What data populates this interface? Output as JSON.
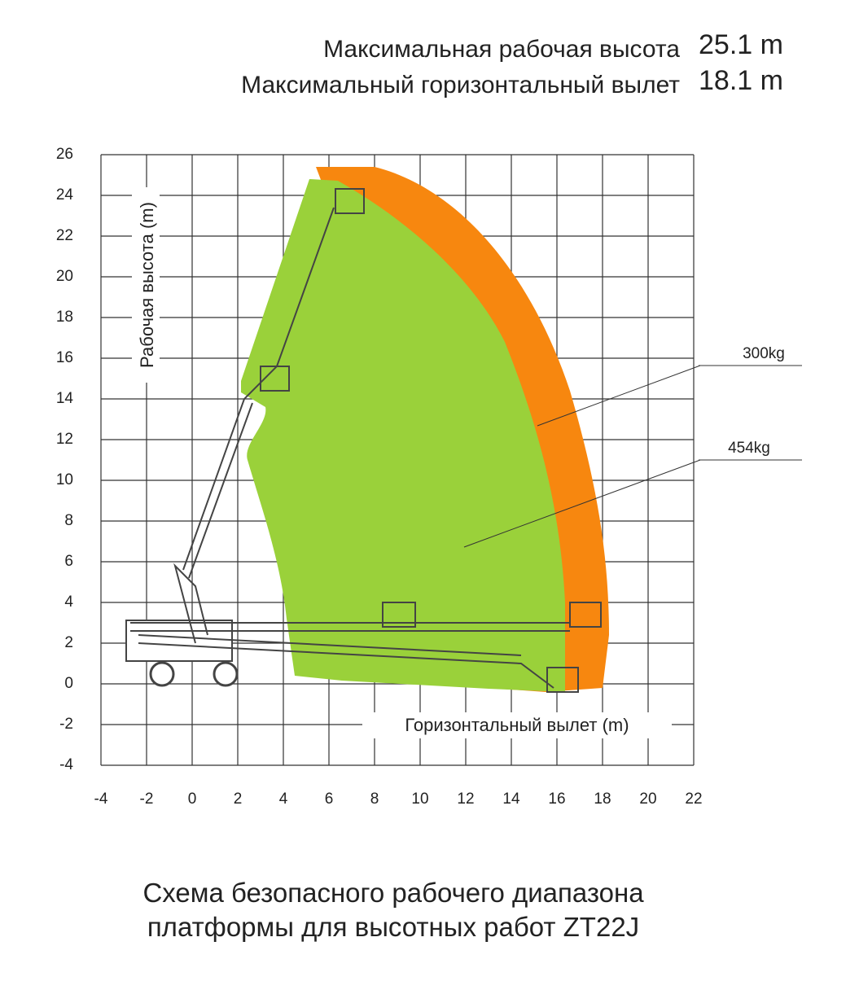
{
  "header": {
    "lines": [
      {
        "label": "Максимальная рабочая высота",
        "value": "25.1 m"
      },
      {
        "label": "Максимальный горизонтальный вылет",
        "value": "18.1 m"
      }
    ]
  },
  "diagram": {
    "xlim": [
      -4,
      22
    ],
    "ylim": [
      -4,
      26
    ],
    "xticks": [
      -4,
      -2,
      0,
      2,
      4,
      6,
      8,
      10,
      12,
      14,
      16,
      18,
      20,
      22
    ],
    "yticks": [
      -4,
      -2,
      0,
      2,
      4,
      6,
      8,
      10,
      12,
      14,
      16,
      18,
      20,
      22,
      24,
      26
    ],
    "ylabel": "Рабочая высота (m)",
    "xlabel": "Горизонтальный вылет (m)",
    "loads": [
      "300kg",
      "454kg"
    ]
  },
  "caption": [
    "Схема безопасного рабочего диапазона",
    "платформы для высотных работ ZT22J"
  ]
}
